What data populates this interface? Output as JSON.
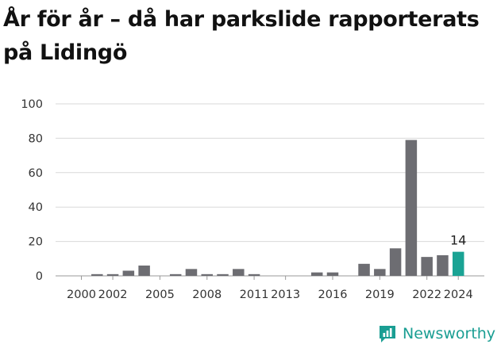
{
  "title": "År för år – då har parkslide rapporterats på Lidingö",
  "brand": {
    "name": "Newsworthy",
    "icon": "newsworthy-logo-icon",
    "color": "#1a9e93"
  },
  "colors": {
    "bar": "#6d6d72",
    "highlight": "#1aa394",
    "grid": "#d9d9d9"
  },
  "chart_data": {
    "type": "bar",
    "title": "År för år – då har parkslide rapporterats på Lidingö",
    "xlabel": "",
    "ylabel": "",
    "ylim": [
      0,
      100
    ],
    "y_ticks": [
      0,
      20,
      40,
      60,
      80,
      100
    ],
    "x_tick_labels": [
      "2000",
      "2002",
      "2005",
      "2008",
      "2011",
      "2013",
      "2016",
      "2019",
      "2022",
      "2024"
    ],
    "categories": [
      2000,
      2001,
      2002,
      2003,
      2004,
      2005,
      2006,
      2007,
      2008,
      2009,
      2010,
      2011,
      2012,
      2013,
      2014,
      2015,
      2016,
      2017,
      2018,
      2019,
      2020,
      2021,
      2022,
      2023,
      2024
    ],
    "values": [
      0,
      1,
      1,
      3,
      6,
      0,
      1,
      4,
      1,
      1,
      4,
      1,
      0,
      0,
      0,
      2,
      2,
      0,
      7,
      4,
      16,
      79,
      11,
      12,
      14
    ],
    "highlight": {
      "category": 2024,
      "label": "14"
    },
    "grid": true,
    "legend": "none"
  }
}
